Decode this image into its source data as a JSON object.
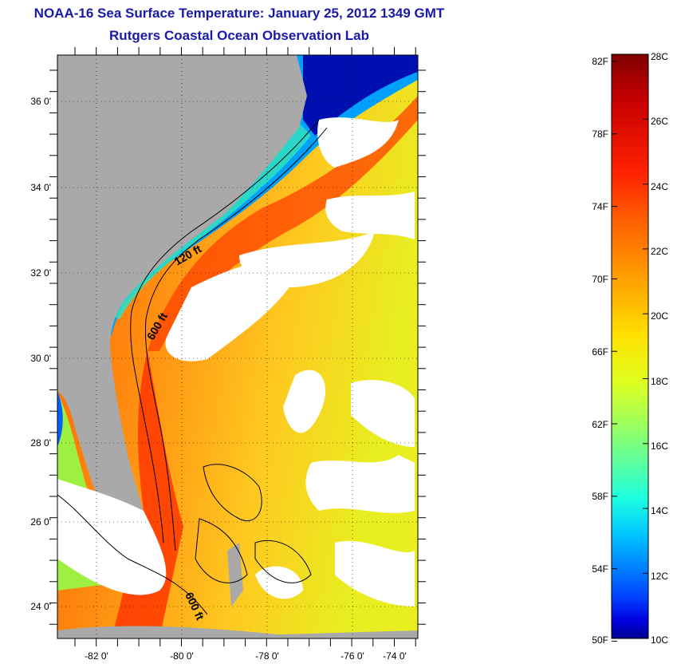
{
  "title": "NOAA-16 Sea Surface Temperature:  January 25, 2012 1349 GMT",
  "subtitle": "Rutgers Coastal Ocean Observation Lab",
  "map": {
    "lat_ticks": [
      "36 0'",
      "34 0'",
      "32 0'",
      "30 0'",
      "28 0'",
      "26 0'",
      "24 0'"
    ],
    "lon_ticks": [
      "-82 0'",
      "-80 0'",
      "-78 0'",
      "-76 0'",
      "-74 0'"
    ],
    "contour_labels": [
      "120 ft",
      "600 ft",
      "600 ft"
    ],
    "land_color": "#a9a9a9",
    "cloud_color": "#ffffff"
  },
  "colorbar": {
    "fahrenheit": [
      "82F",
      "78F",
      "74F",
      "70F",
      "66F",
      "62F",
      "58F",
      "54F",
      "50F"
    ],
    "celsius": [
      "28C",
      "26C",
      "24C",
      "22C",
      "20C",
      "18C",
      "16C",
      "14C",
      "12C",
      "10C"
    ],
    "colors": [
      "#7f0000",
      "#c80000",
      "#ff2000",
      "#ff6a00",
      "#ffaa00",
      "#ffe000",
      "#e0ff1e",
      "#a0ff5a",
      "#5affa0",
      "#1effe0",
      "#00c8ff",
      "#0080ff",
      "#0040ff",
      "#0000e0",
      "#00008f"
    ]
  }
}
